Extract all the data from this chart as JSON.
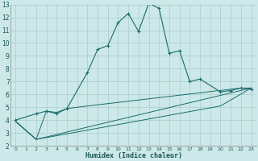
{
  "xlabel": "Humidex (Indice chaleur)",
  "bg_color": "#cce8e8",
  "grid_color": "#aacccc",
  "line_color": "#1a6b6b",
  "xlim": [
    -0.5,
    23.5
  ],
  "ylim": [
    2,
    13
  ],
  "xticks": [
    0,
    1,
    2,
    3,
    4,
    5,
    6,
    7,
    8,
    9,
    10,
    11,
    12,
    13,
    14,
    15,
    16,
    17,
    18,
    19,
    20,
    21,
    22,
    23
  ],
  "yticks": [
    2,
    3,
    4,
    5,
    6,
    7,
    8,
    9,
    10,
    11,
    12,
    13
  ],
  "series1_x": [
    0,
    2,
    3,
    4,
    5,
    7,
    8,
    9,
    10,
    11,
    12,
    13,
    14,
    15,
    16,
    17,
    18,
    20,
    21,
    22,
    23
  ],
  "series1_y": [
    4,
    4.5,
    4.7,
    4.5,
    4.9,
    7.7,
    9.5,
    9.8,
    11.6,
    12.3,
    10.9,
    13.1,
    12.7,
    9.2,
    9.4,
    7.0,
    7.2,
    6.2,
    6.3,
    6.5,
    6.4
  ],
  "series2_x": [
    0,
    2,
    3,
    4,
    5,
    6,
    7,
    22,
    23
  ],
  "series2_y": [
    3.9,
    2.5,
    4.7,
    4.6,
    4.9,
    5.0,
    5.1,
    6.5,
    6.5
  ],
  "series3_x": [
    0,
    2,
    23
  ],
  "series3_y": [
    3.9,
    2.5,
    6.5
  ],
  "series4_x": [
    0,
    2,
    20,
    23
  ],
  "series4_y": [
    3.9,
    2.5,
    5.1,
    6.5
  ]
}
